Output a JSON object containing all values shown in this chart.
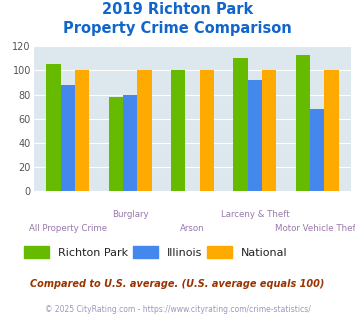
{
  "title_line1": "2019 Richton Park",
  "title_line2": "Property Crime Comparison",
  "groups": [
    "All Property Crime",
    "Burglary",
    "Arson",
    "Larceny & Theft",
    "Motor Vehicle Theft"
  ],
  "labels_top_row": [
    "",
    "Burglary",
    "",
    "Larceny & Theft",
    ""
  ],
  "labels_bot_row": [
    "All Property Crime",
    "",
    "Arson",
    "",
    "Motor Vehicle Theft"
  ],
  "richton_park": [
    105,
    78,
    100,
    110,
    113
  ],
  "illinois": [
    88,
    80,
    0,
    92,
    68
  ],
  "national": [
    100,
    100,
    100,
    100,
    100
  ],
  "colors": {
    "richton_park": "#66bb00",
    "illinois": "#4488ee",
    "national": "#ffaa00"
  },
  "ylim": [
    0,
    120
  ],
  "yticks": [
    0,
    20,
    40,
    60,
    80,
    100,
    120
  ],
  "legend_labels": [
    "Richton Park",
    "Illinois",
    "National"
  ],
  "footnote1": "Compared to U.S. average. (U.S. average equals 100)",
  "footnote2": "© 2025 CityRating.com - https://www.cityrating.com/crime-statistics/",
  "bg_color": "#dce8ee",
  "title_color": "#1166cc",
  "label_color": "#9977aa",
  "footnote1_color": "#993300",
  "footnote2_color": "#9999bb"
}
